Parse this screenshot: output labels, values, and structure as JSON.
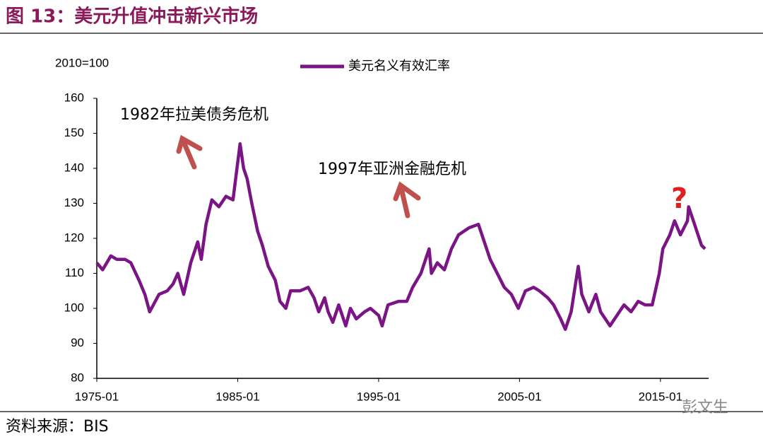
{
  "chart_data": {
    "type": "line",
    "title": "图 13：美元升值冲击新兴市场",
    "y_label": "2010=100",
    "source": "资料来源：BIS",
    "watermark": "彭文生",
    "annotations": [
      "1982年拉美债务危机",
      "1997年亚洲金融危机",
      "?"
    ],
    "x": [
      "1975-01",
      "1975-06",
      "1976-01",
      "1976-06",
      "1977-01",
      "1977-06",
      "1978-01",
      "1978-06",
      "1978-10",
      "1979-06",
      "1980-01",
      "1980-06",
      "1980-10",
      "1981-03",
      "1981-09",
      "1982-03",
      "1982-06",
      "1982-10",
      "1983-03",
      "1983-09",
      "1984-03",
      "1984-09",
      "1985-03",
      "1985-06",
      "1985-09",
      "1986-01",
      "1986-06",
      "1986-10",
      "1987-03",
      "1987-09",
      "1988-01",
      "1988-06",
      "1988-10",
      "1989-06",
      "1990-01",
      "1990-06",
      "1990-10",
      "1991-03",
      "1991-06",
      "1991-10",
      "1992-03",
      "1992-09",
      "1993-01",
      "1993-06",
      "1994-01",
      "1994-06",
      "1995-01",
      "1995-04",
      "1995-09",
      "1996-06",
      "1997-01",
      "1997-06",
      "1998-01",
      "1998-08",
      "1998-10",
      "1999-03",
      "1999-09",
      "2000-03",
      "2000-09",
      "2001-06",
      "2002-02",
      "2002-07",
      "2002-12",
      "2003-06",
      "2003-12",
      "2004-06",
      "2004-12",
      "2005-06",
      "2006-01",
      "2006-06",
      "2007-01",
      "2007-06",
      "2007-12",
      "2008-04",
      "2008-09",
      "2009-03",
      "2009-06",
      "2009-12",
      "2010-06",
      "2010-10",
      "2011-06",
      "2011-10",
      "2012-06",
      "2012-12",
      "2013-06",
      "2013-12",
      "2014-06",
      "2014-12",
      "2015-03",
      "2015-09",
      "2016-01",
      "2016-06",
      "2016-12",
      "2017-01",
      "2017-06",
      "2017-12",
      "2018-03"
    ],
    "series": [
      {
        "name": "美元名义有效汇率",
        "color": "#7b1485",
        "values": [
          113,
          111,
          115,
          114,
          114,
          113,
          108,
          104,
          99,
          104,
          105,
          107,
          110,
          104,
          113,
          119,
          114,
          124,
          131,
          129,
          132,
          131,
          147,
          140,
          137,
          130,
          122,
          118,
          112,
          108,
          102,
          100,
          105,
          105,
          106,
          103,
          99,
          103,
          99,
          96,
          101,
          95,
          100,
          97,
          99,
          100,
          98,
          95,
          101,
          102,
          102,
          106,
          110,
          117,
          110,
          113,
          111,
          117,
          121,
          123,
          124,
          119,
          114,
          110,
          106,
          104,
          100,
          105,
          106,
          105,
          103,
          101,
          97,
          94,
          99,
          112,
          104,
          99,
          104,
          99,
          95,
          97,
          101,
          99,
          102,
          101,
          101,
          110,
          117,
          121,
          125,
          121,
          125,
          129,
          124,
          118,
          117
        ]
      }
    ],
    "xlim": [
      "1975-01",
      "2018-06"
    ],
    "xticks": [
      "1975-01",
      "1985-01",
      "1995-01",
      "2005-01",
      "2015-01"
    ],
    "ylim": [
      80,
      160
    ],
    "yticks": [
      80,
      90,
      100,
      110,
      120,
      130,
      140,
      150,
      160
    ],
    "legend": "top"
  }
}
